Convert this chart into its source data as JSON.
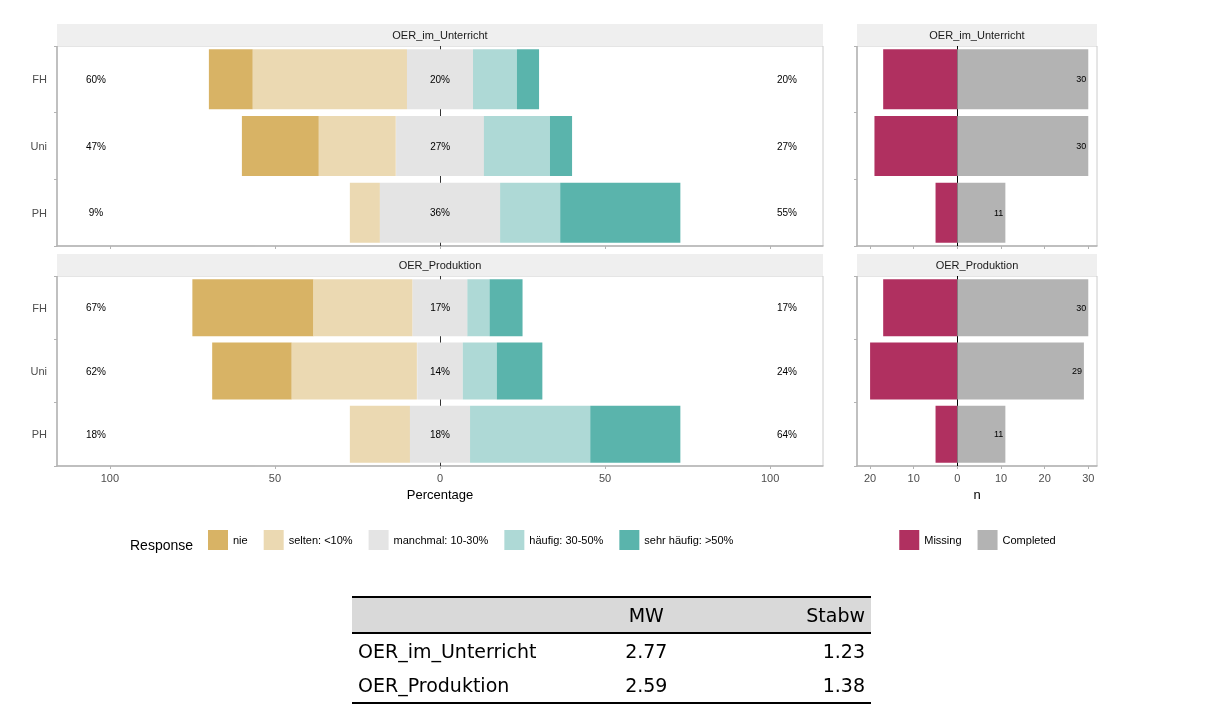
{
  "chart_data": [
    {
      "type": "bar",
      "orientation": "horizontal",
      "title": "OER_im_Unterricht",
      "categories": [
        "FH",
        "Uni",
        "PH"
      ],
      "xlim": [
        -116,
        116
      ],
      "xticks": [
        {
          "value": -100,
          "label": null
        },
        {
          "value": -50,
          "label": null
        },
        {
          "value": 0,
          "label": null
        },
        {
          "value": 50,
          "label": null
        },
        {
          "value": 100,
          "label": null
        }
      ],
      "tick_labels": "y",
      "legend": false,
      "series": [
        {
          "color": "#d8b365",
          "values": [
            13.3,
            23.3,
            null
          ],
          "base": [
            -70,
            -60,
            null
          ]
        },
        {
          "color": "#ebd9b2",
          "values": [
            46.7,
            23.3,
            9.1
          ],
          "base": [
            -56.7,
            -36.7,
            -27.3
          ]
        },
        {
          "color": "#e4e4e4",
          "values": [
            20,
            26.7,
            36.4
          ],
          "base": [
            -10,
            -13.3,
            -18.2
          ],
          "value_labels": [
            "20%",
            "27%",
            "36%"
          ]
        },
        {
          "color": "#aed9d6",
          "values": [
            13.3,
            20,
            18.2
          ],
          "base": [
            10,
            13.3,
            18.2
          ]
        },
        {
          "color": "#5ab4ac",
          "values": [
            6.7,
            6.7,
            36.4
          ],
          "base": [
            23.3,
            33.3,
            36.4
          ]
        }
      ],
      "annotations": [
        "60%",
        "20%",
        "47%",
        "27%",
        "9%",
        "55%"
      ],
      "ref_lines": [
        {
          "axis": "x",
          "value": 0,
          "color": "#333333"
        }
      ]
    },
    {
      "type": "bar",
      "orientation": "horizontal",
      "title": "OER_im_Unterricht",
      "categories": [
        null,
        null,
        null
      ],
      "xlim": [
        -23,
        32
      ],
      "xticks": [
        {
          "value": -20,
          "label": null
        },
        {
          "value": -10,
          "label": null
        },
        {
          "value": 0,
          "label": null
        },
        {
          "value": 10,
          "label": null
        },
        {
          "value": 20,
          "label": null
        },
        {
          "value": 30,
          "label": null
        }
      ],
      "tick_labels": false,
      "stacked": true,
      "legend": false,
      "series": [
        {
          "color": "#b03060",
          "values": [
            -17,
            -19,
            -5
          ]
        },
        {
          "color": "#b3b3b3",
          "values": [
            30,
            30,
            11
          ],
          "value_labels": [
            "30",
            "30",
            "11"
          ]
        }
      ],
      "ref_lines": [
        {
          "axis": "x",
          "value": 0,
          "color": "#000000"
        }
      ]
    },
    {
      "type": "bar",
      "orientation": "horizontal",
      "title": "OER_Produktion",
      "categories": [
        "FH",
        "Uni",
        "PH"
      ],
      "xlim": [
        -116,
        116
      ],
      "xticks": [
        {
          "value": -100,
          "label": "100"
        },
        {
          "value": -50,
          "label": "50"
        },
        0,
        50,
        100
      ],
      "xlabel": "Percentage",
      "legend": "bottom",
      "legend_title": "Response",
      "series": [
        {
          "name": "nie",
          "color": "#d8b365",
          "values": [
            36.7,
            24.1,
            null
          ],
          "base": [
            -75,
            -69,
            null
          ]
        },
        {
          "name": "selten: <10%",
          "color": "#ebd9b2",
          "values": [
            30,
            37.9,
            18.2
          ],
          "base": [
            -38.3,
            -44.9,
            -27.3
          ]
        },
        {
          "name": "manchmal: 10-30%",
          "color": "#e4e4e4",
          "values": [
            16.7,
            13.8,
            18.2
          ],
          "base": [
            -8.3,
            -6.9,
            -9.1
          ],
          "value_labels": [
            "17%",
            "14%",
            "18%"
          ]
        },
        {
          "name": "häufig: 30-50%",
          "color": "#aed9d6",
          "values": [
            6.7,
            10.3,
            36.4
          ],
          "base": [
            8.3,
            6.9,
            9.1
          ]
        },
        {
          "name": "sehr häufig: >50%",
          "color": "#5ab4ac",
          "values": [
            10,
            13.8,
            27.3
          ],
          "base": [
            15,
            17.2,
            45.5
          ]
        }
      ],
      "annotations": [
        "67%",
        "17%",
        "62%",
        "24%",
        "18%",
        "64%"
      ],
      "ref_lines": [
        {
          "axis": "x",
          "value": 0,
          "color": "#333333"
        }
      ]
    },
    {
      "type": "bar",
      "orientation": "horizontal",
      "title": "OER_Produktion",
      "categories": [
        null,
        null,
        null
      ],
      "xlim": [
        -23,
        32
      ],
      "xticks": [
        {
          "value": -20,
          "label": "20"
        },
        {
          "value": -10,
          "label": "10"
        },
        0,
        10,
        20,
        30
      ],
      "tick_labels": "x",
      "stacked": true,
      "xlabel": "n",
      "legend": "bottom",
      "series": [
        {
          "name": "Missing",
          "color": "#b03060",
          "values": [
            -17,
            -20,
            -5
          ]
        },
        {
          "name": "Completed",
          "color": "#b3b3b3",
          "values": [
            30,
            29,
            11
          ],
          "value_labels": [
            "30",
            "29",
            "11"
          ]
        }
      ],
      "ref_lines": [
        {
          "axis": "x",
          "value": 0,
          "color": "#000000"
        }
      ]
    },
    {
      "type": "other",
      "categories": [
        "OER_im_Unterricht",
        "OER_Produktion"
      ],
      "series": [
        {
          "name": "MW",
          "values": [
            2.77,
            2.59
          ]
        },
        {
          "name": "Stabw",
          "values": [
            1.23,
            1.38
          ]
        }
      ],
      "data_labels": true
    }
  ]
}
